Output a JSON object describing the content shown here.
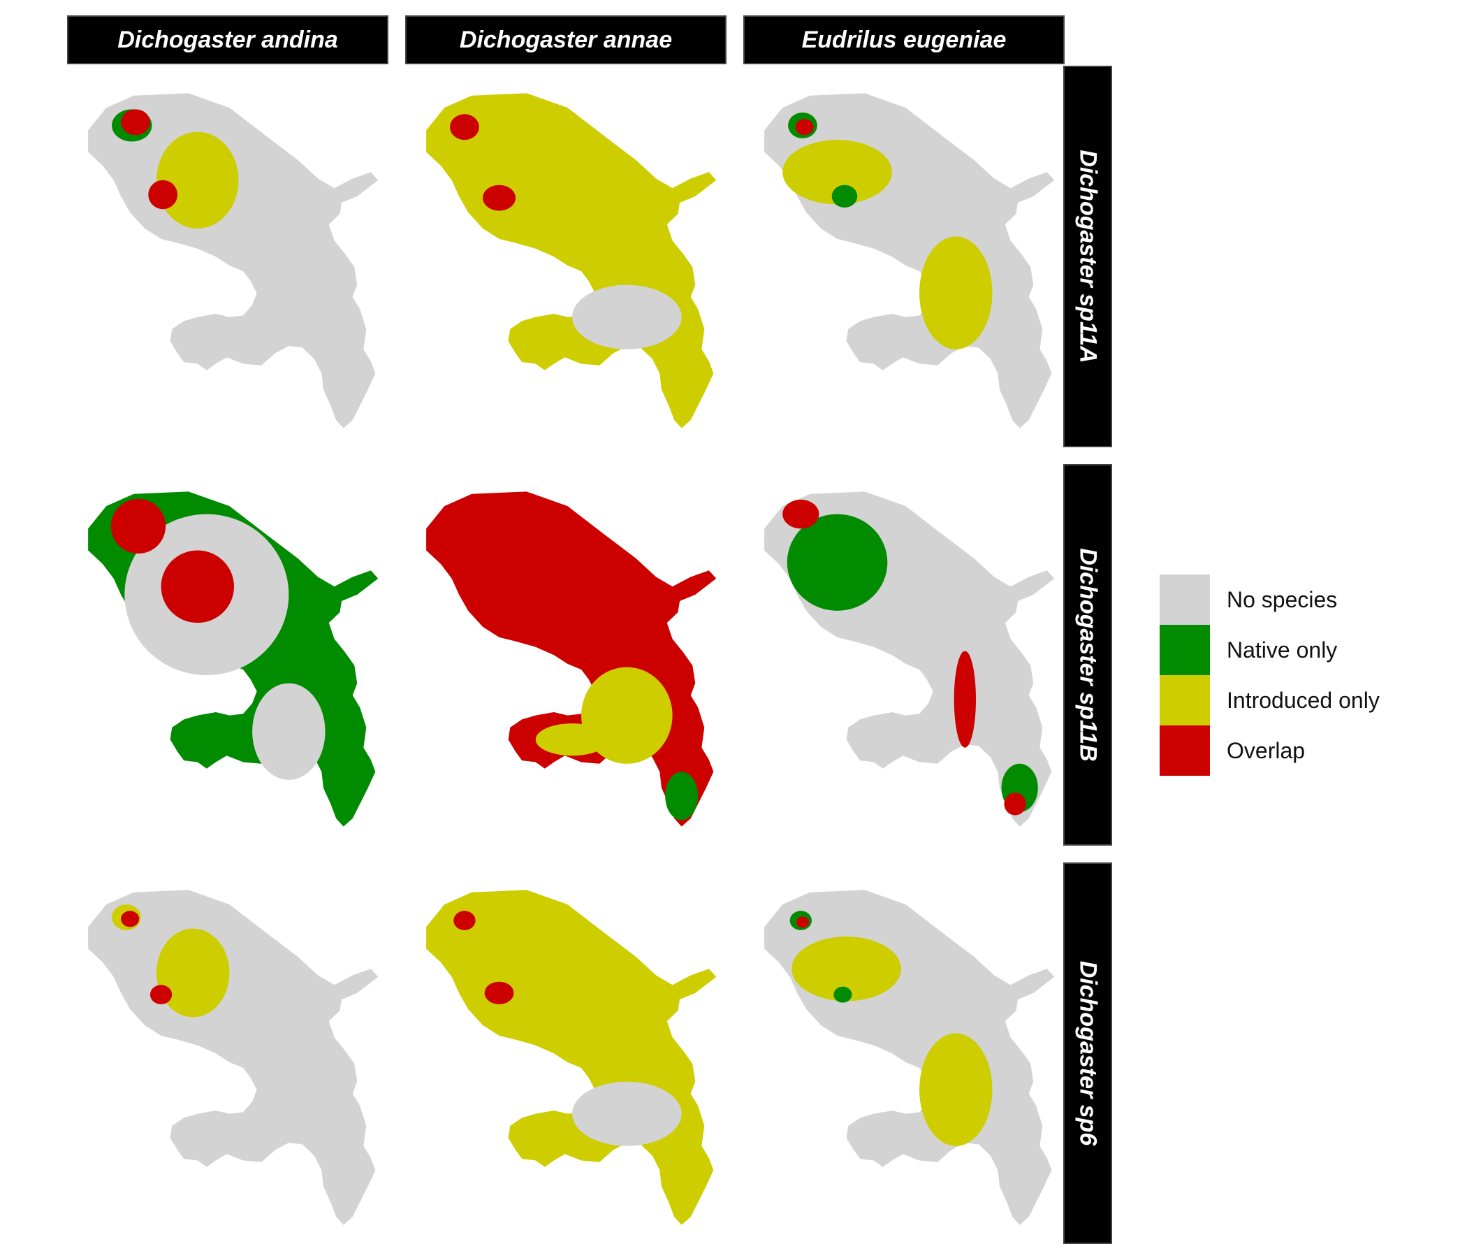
{
  "figure": {
    "column_species": [
      "Dichogaster andina",
      "Dichogaster annae",
      "Eudrilus eugeniae"
    ],
    "row_species": [
      "Dichogaster sp11A",
      "Dichogaster sp11B",
      "Dichogaster sp6"
    ]
  },
  "legend": {
    "items": [
      {
        "label": "No species",
        "color": "#d3d3d3"
      },
      {
        "label": "Native only",
        "color": "#008b00"
      },
      {
        "label": "Introduced only",
        "color": "#cdcd00"
      },
      {
        "label": "Overlap",
        "color": "#cd0000"
      }
    ]
  },
  "colors": {
    "no_species": "#d3d3d3",
    "native_only": "#008b00",
    "introduced_only": "#cdcd00",
    "overlap": "#cd0000"
  },
  "panels": [
    {
      "row": "Dichogaster sp11A",
      "col": "Dichogaster andina",
      "dominant_category": "No species"
    },
    {
      "row": "Dichogaster sp11A",
      "col": "Dichogaster annae",
      "dominant_category": "Introduced only"
    },
    {
      "row": "Dichogaster sp11A",
      "col": "Eudrilus eugeniae",
      "dominant_category": "No species"
    },
    {
      "row": "Dichogaster sp11B",
      "col": "Dichogaster andina",
      "dominant_category": "Native only"
    },
    {
      "row": "Dichogaster sp11B",
      "col": "Dichogaster annae",
      "dominant_category": "Overlap"
    },
    {
      "row": "Dichogaster sp11B",
      "col": "Eudrilus eugeniae",
      "dominant_category": "No species"
    },
    {
      "row": "Dichogaster sp6",
      "col": "Dichogaster andina",
      "dominant_category": "No species"
    },
    {
      "row": "Dichogaster sp6",
      "col": "Dichogaster annae",
      "dominant_category": "Introduced only"
    },
    {
      "row": "Dichogaster sp6",
      "col": "Eudrilus eugeniae",
      "dominant_category": "No species"
    }
  ]
}
